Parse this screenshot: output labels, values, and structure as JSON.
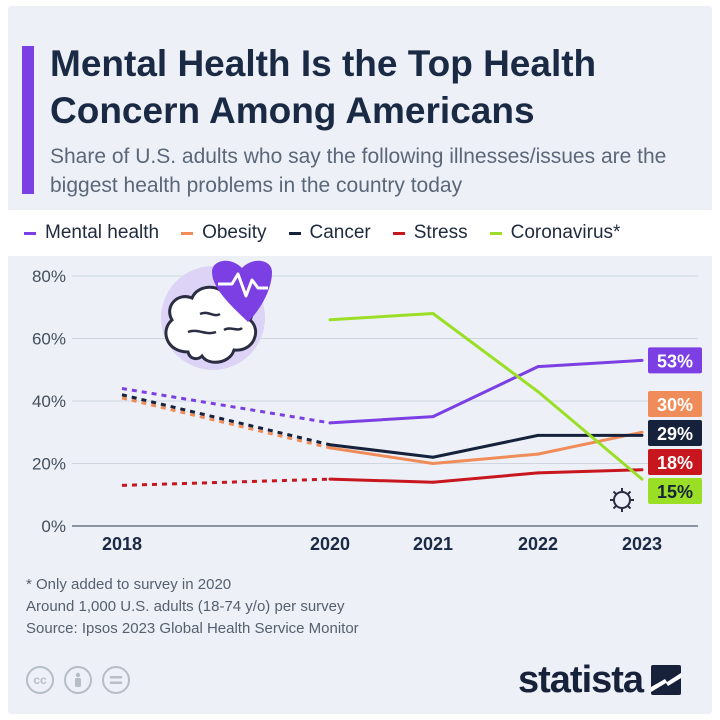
{
  "title": "Mental Health Is the Top Health Concern Among Americans",
  "subtitle": "Share of U.S. adults who say the following illnesses/issues are the biggest health problems in the country today",
  "legend": [
    {
      "label": "Mental health",
      "color": "#7b3fe4"
    },
    {
      "label": "Obesity",
      "color": "#f08c5a"
    },
    {
      "label": "Cancer",
      "color": "#16223b"
    },
    {
      "label": "Stress",
      "color": "#c8161e"
    },
    {
      "label": "Coronavirus*",
      "color": "#9adf26"
    }
  ],
  "chart_data": {
    "type": "line",
    "x": [
      2018,
      2020,
      2021,
      2022,
      2023
    ],
    "x_tick_labels": [
      "2018",
      "2020",
      "2021",
      "2022",
      "2023"
    ],
    "ylim": [
      0,
      80
    ],
    "y_ticks": [
      0,
      20,
      40,
      60,
      80
    ],
    "y_tick_labels": [
      "0%",
      "20%",
      "40%",
      "60%",
      "80%"
    ],
    "grid": true,
    "dashed_segment": {
      "from": 2018,
      "to": 2020
    },
    "series": [
      {
        "name": "Mental health",
        "color": "#7b3fe4",
        "values": [
          44,
          33,
          35,
          51,
          53
        ],
        "end_label": "53%"
      },
      {
        "name": "Obesity",
        "color": "#f08c5a",
        "values": [
          41,
          25,
          20,
          23,
          30
        ],
        "end_label": "30%"
      },
      {
        "name": "Cancer",
        "color": "#16223b",
        "values": [
          42,
          26,
          22,
          29,
          29
        ],
        "end_label": "29%"
      },
      {
        "name": "Stress",
        "color": "#c8161e",
        "values": [
          13,
          15,
          14,
          17,
          18
        ],
        "end_label": "18%"
      },
      {
        "name": "Coronavirus*",
        "color": "#9adf26",
        "values": [
          null,
          66,
          68,
          43,
          15
        ],
        "end_label": "15%"
      }
    ]
  },
  "notes": {
    "footnote": "* Only added to survey in 2020",
    "sample": "Around 1,000 U.S. adults (18-74 y/o) per survey",
    "source": "Source: Ipsos 2023 Global Health Service Monitor"
  },
  "icons": {
    "illustration": "brain-heart-icon",
    "virus": "virus-icon",
    "license": [
      "cc-icon",
      "by-icon",
      "nd-icon"
    ]
  },
  "brand": {
    "name": "statista"
  }
}
